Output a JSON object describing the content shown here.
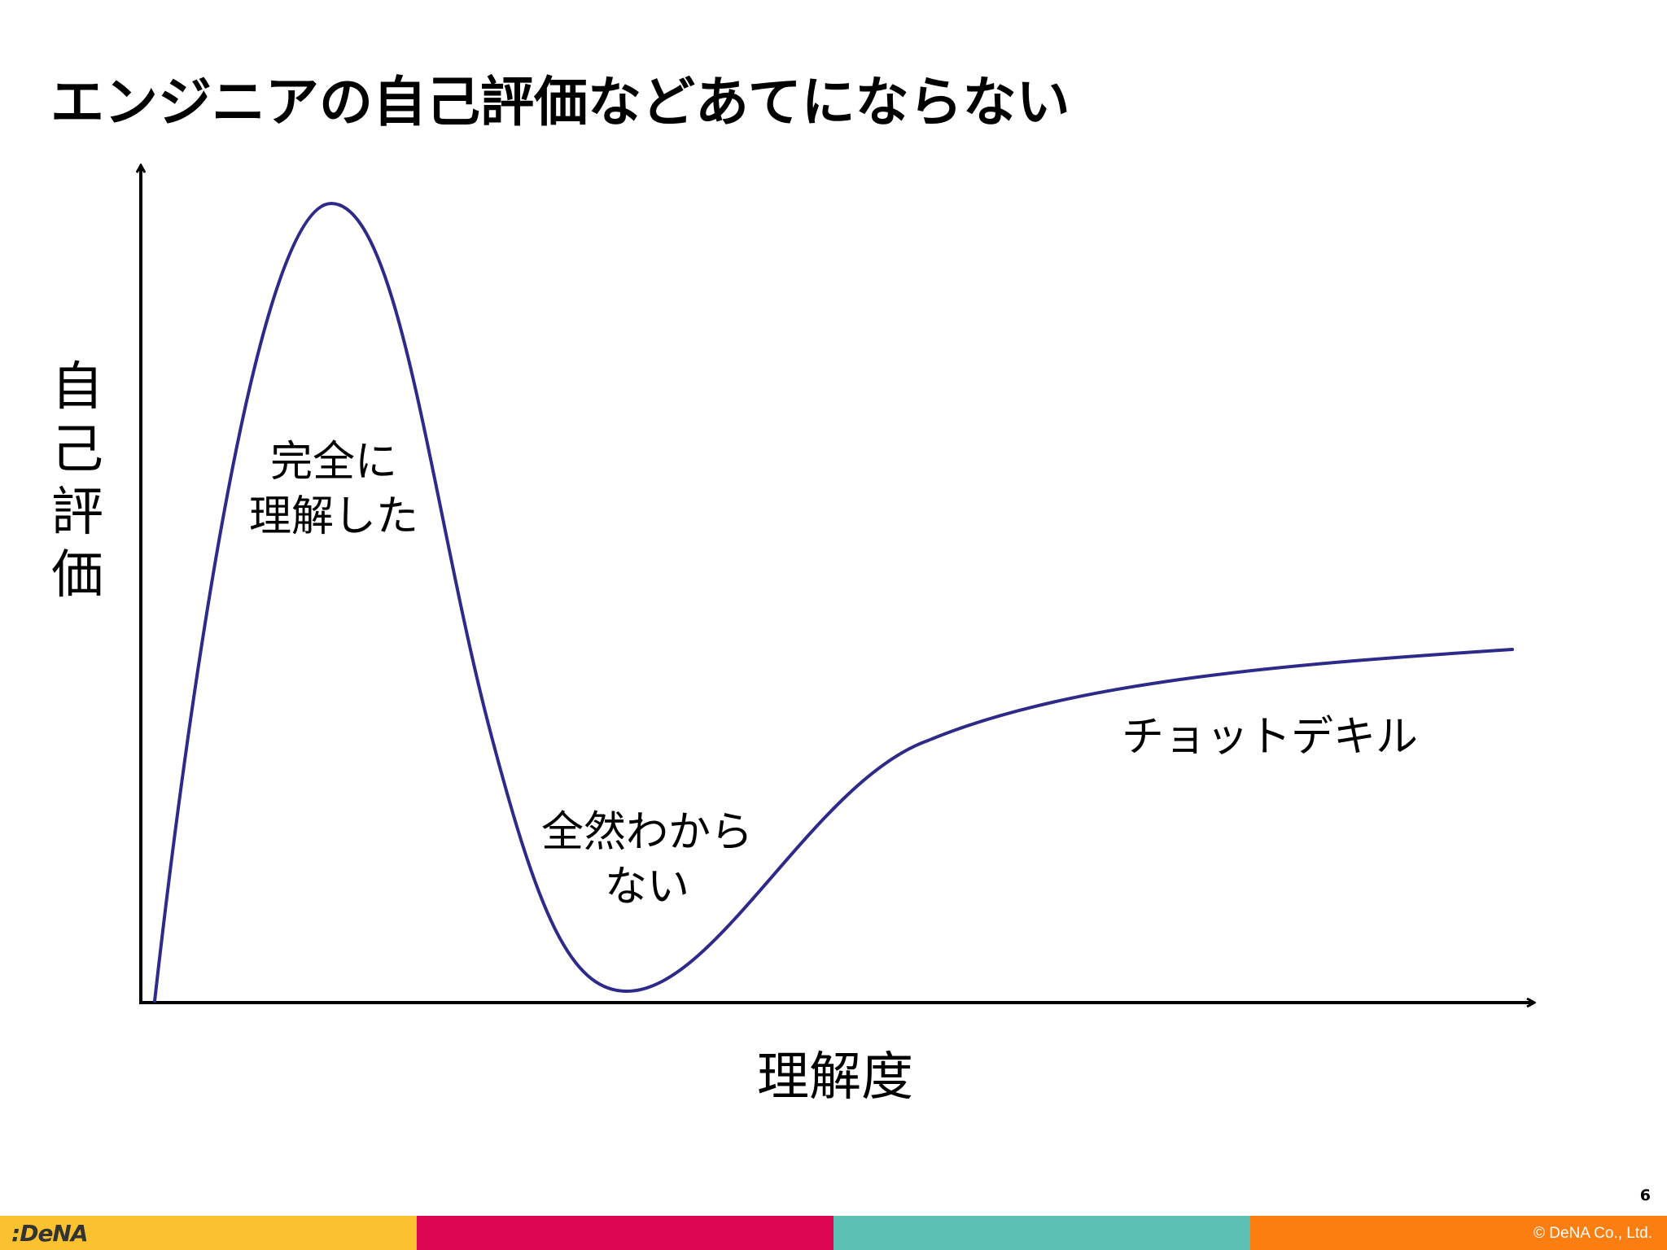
{
  "slide": {
    "title": "エンジニアの自己評価などあてにならない",
    "page_number": "6"
  },
  "diagram": {
    "y_axis_label": "自\n己\n評\n価",
    "x_axis_label": "理解度",
    "annotations": {
      "peak": "完全に\n理解した",
      "trough": "全然わから\nない",
      "plateau": "チョットデキル"
    },
    "curve_color": "#2e2a8a",
    "axis_color": "#000000"
  },
  "footer": {
    "logo": ":DeNA",
    "copyright": "©  DeNA Co., Ltd.",
    "colors": [
      "#f9c22e",
      "#dd0650",
      "#5cc0b5",
      "#fd7e10"
    ]
  }
}
